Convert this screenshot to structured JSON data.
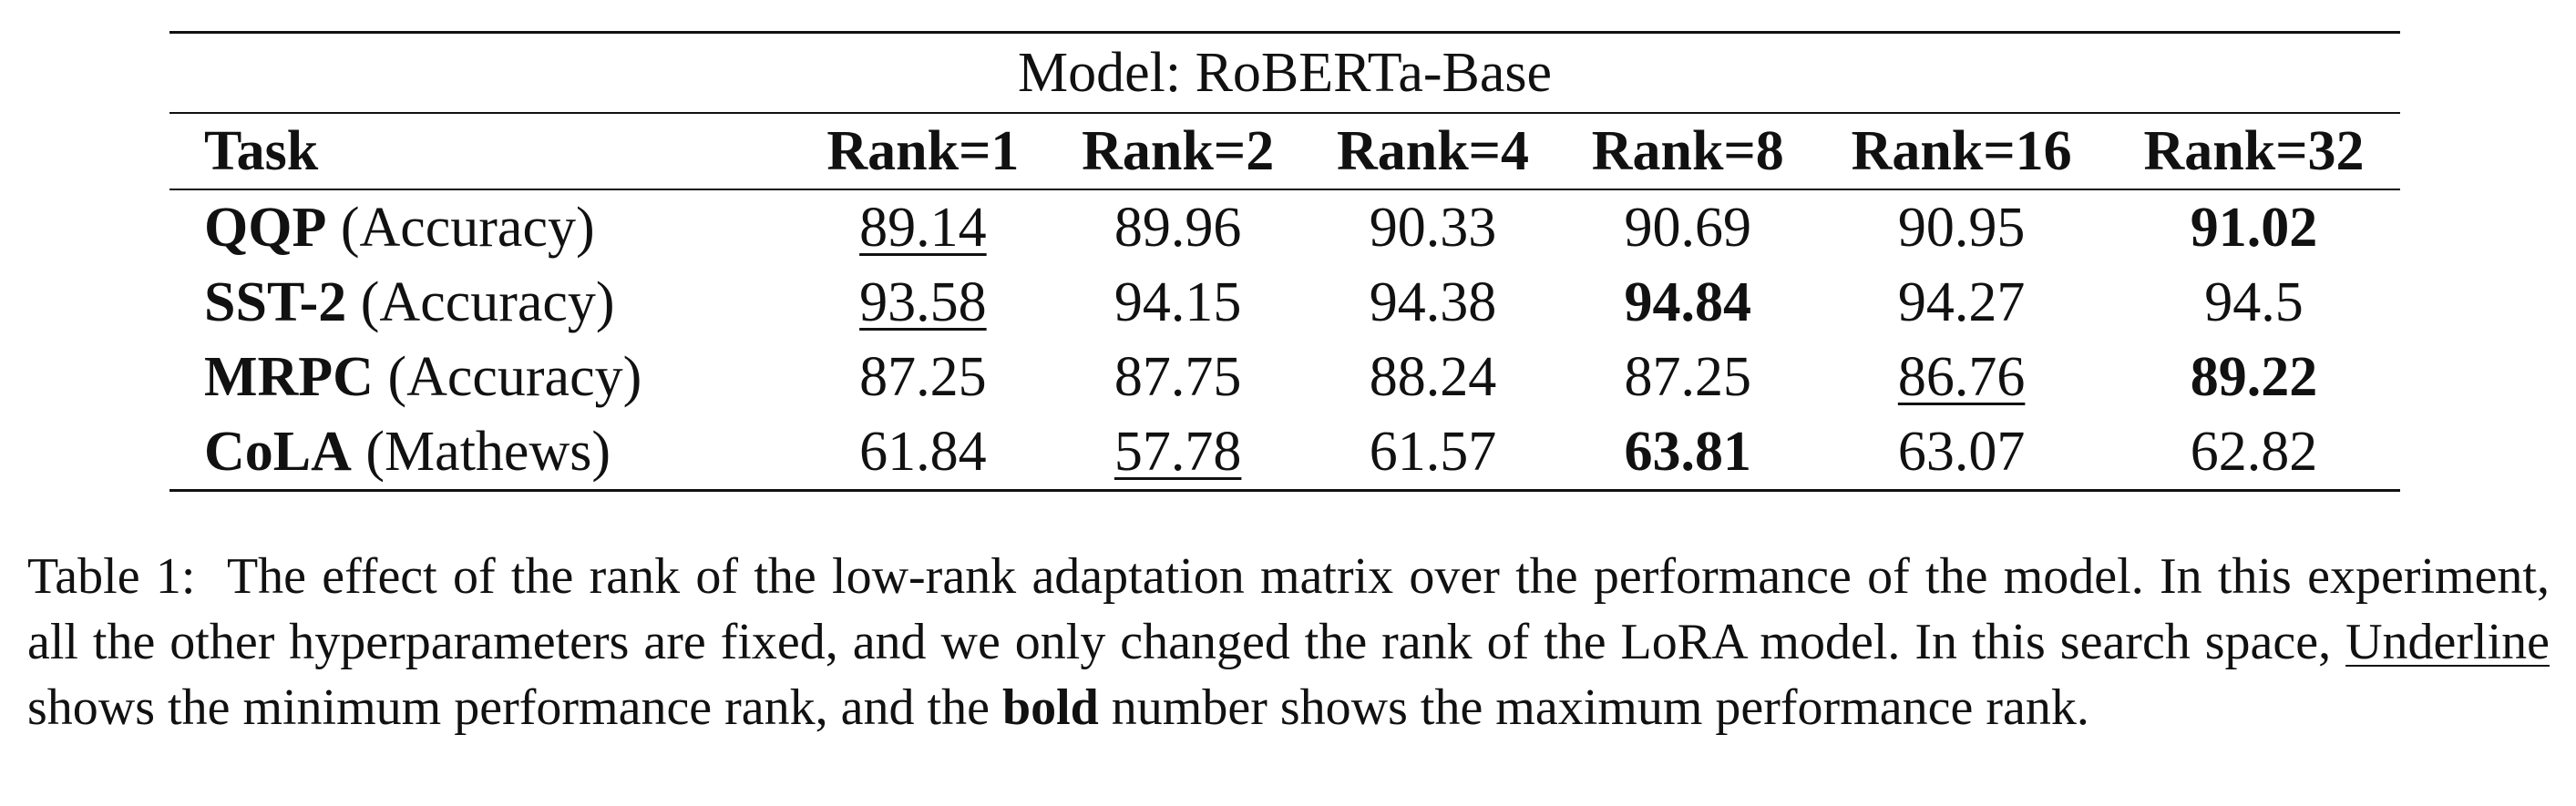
{
  "table": {
    "model_label": "Model: RoBERTa-Base",
    "headers": [
      "Task",
      "Rank=1",
      "Rank=2",
      "Rank=4",
      "Rank=8",
      "Rank=16",
      "Rank=32"
    ],
    "rows": [
      {
        "task": "QQP",
        "metric": "(Accuracy)",
        "values": [
          "89.14",
          "89.96",
          "90.33",
          "90.69",
          "90.95",
          "91.02"
        ],
        "min_index": 0,
        "max_index": 5
      },
      {
        "task": "SST-2",
        "metric": "(Accuracy)",
        "values": [
          "93.58",
          "94.15",
          "94.38",
          "94.84",
          "94.27",
          "94.5"
        ],
        "min_index": 0,
        "max_index": 3
      },
      {
        "task": "MRPC",
        "metric": "(Accuracy)",
        "values": [
          "87.25",
          "87.75",
          "88.24",
          "87.25",
          "86.76",
          "89.22"
        ],
        "min_index": 4,
        "max_index": 5
      },
      {
        "task": "CoLA",
        "metric": "(Mathews)",
        "values": [
          "61.84",
          "57.78",
          "61.57",
          "63.81",
          "63.07",
          "62.82"
        ],
        "min_index": 1,
        "max_index": 3
      }
    ]
  },
  "caption": {
    "label": "Table 1:",
    "text_part1": "The effect of the rank of the low-rank adaptation matrix over the performance of the model. In this experiment, all the other hyperparameters are fixed, and we only changed the rank of the LoRA model. In this search space, ",
    "underline_word": "Underline",
    "text_part2": " shows the minimum performance rank, and the ",
    "bold_word": "bold",
    "text_part3": " number shows the maximum performance rank."
  }
}
